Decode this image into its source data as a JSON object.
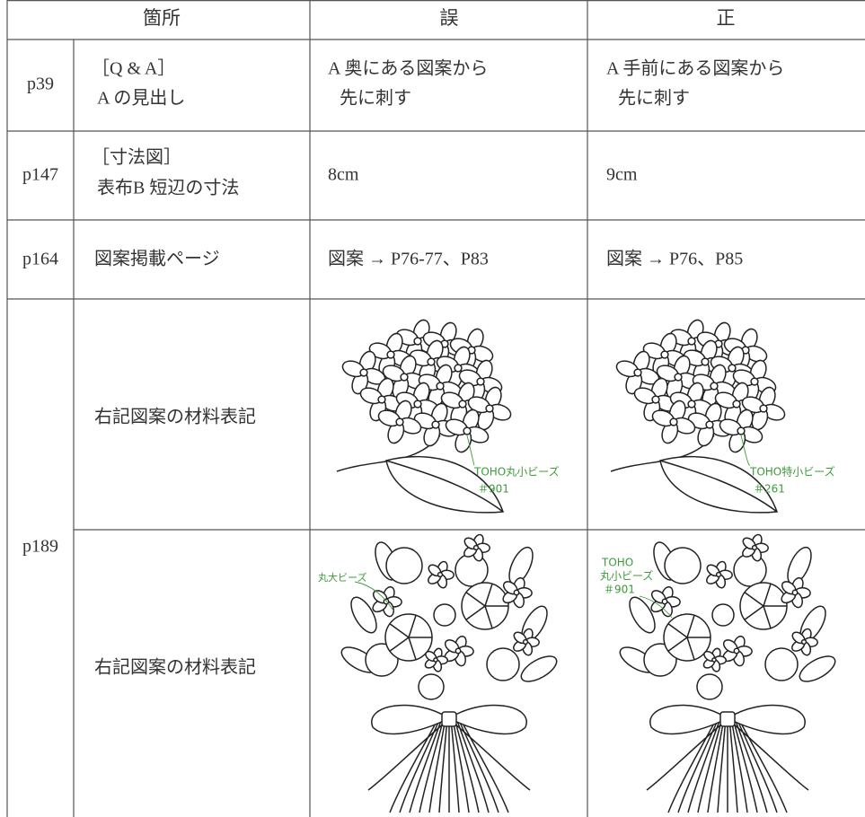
{
  "header": [
    "箇所",
    "誤",
    "正"
  ],
  "rows": [
    {
      "page": "p39",
      "location": [
        "［Q & A］",
        "A の見出し"
      ],
      "wrong": [
        "A 奥にある図案から",
        "先に刺す"
      ],
      "right": [
        "A 手前にある図案から",
        "先に刺す"
      ]
    },
    {
      "page": "p147",
      "location": [
        "［寸法図］",
        "表布B 短辺の寸法"
      ],
      "wrong": [
        "8cm"
      ],
      "right": [
        "9cm"
      ]
    },
    {
      "page": "p164",
      "location": [
        "図案掲載ページ"
      ],
      "wrong": [
        "図案 → P76-77、P83"
      ],
      "right": [
        "図案 → P76、P85"
      ]
    },
    {
      "page": "p189",
      "location": [
        "右記図案の材料表記"
      ],
      "wrong": [
        "TOHO丸小ビーズ",
        "＃901"
      ],
      "right": [
        "TOHO特小ビーズ",
        "＃261"
      ]
    },
    {
      "location": [
        "右記図案の材料表記"
      ],
      "wrong": [
        "丸大ビーズ"
      ],
      "right": [
        "TOHO",
        "丸小ビーズ",
        "＃901"
      ]
    }
  ]
}
